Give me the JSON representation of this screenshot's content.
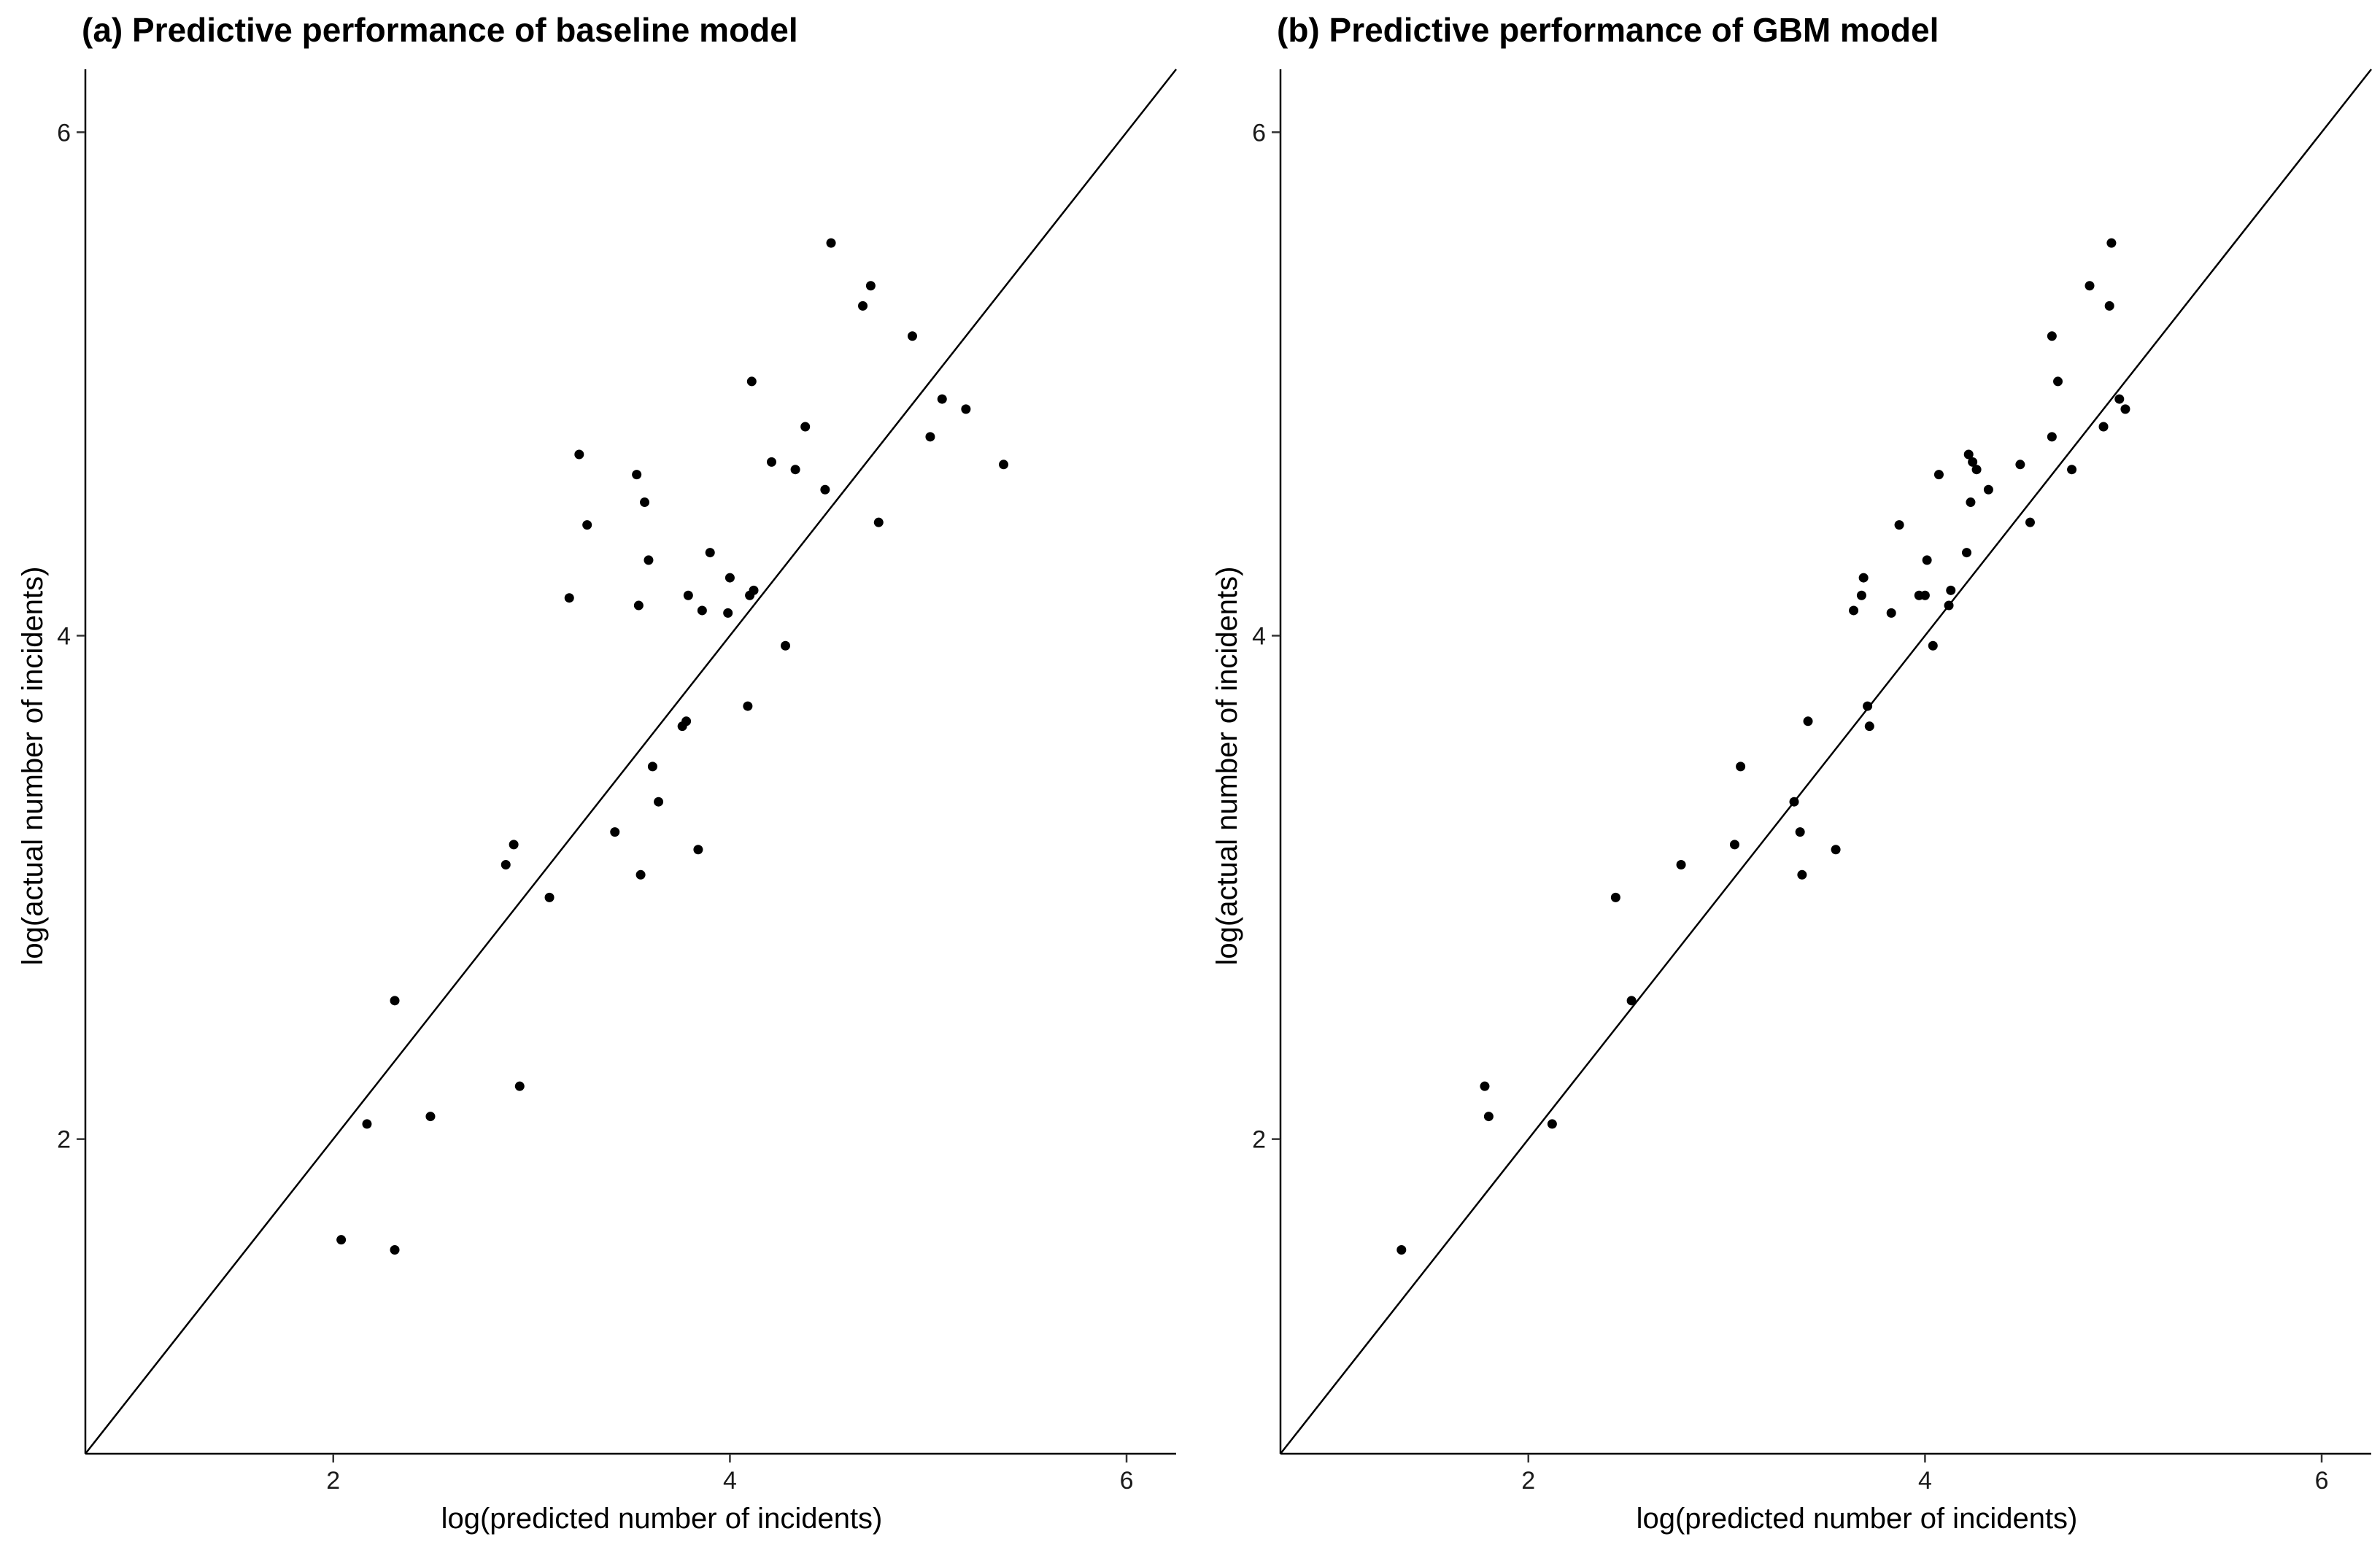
{
  "chart_data": [
    {
      "type": "scatter",
      "title": "(a) Predictive performance of baseline model",
      "xlabel": "log(predicted number of incidents)",
      "ylabel": "log(actual number of incidents)",
      "xlim": [
        0.75,
        6.25
      ],
      "ylim": [
        0.75,
        6.25
      ],
      "xticks": [
        2,
        4,
        6
      ],
      "yticks": [
        2,
        4,
        6
      ],
      "grid": false,
      "reference_line": "y = x",
      "x": [
        2.04,
        2.17,
        2.31,
        2.49,
        2.31,
        2.94,
        2.87,
        2.91,
        3.09,
        3.19,
        3.24,
        3.28,
        3.42,
        3.53,
        3.54,
        3.55,
        3.57,
        3.59,
        3.61,
        3.64,
        3.76,
        3.78,
        3.79,
        3.84,
        3.86,
        3.9,
        3.99,
        4.0,
        4.09,
        4.1,
        4.11,
        4.12,
        4.21,
        4.28,
        4.33,
        4.38,
        4.48,
        4.51,
        4.67,
        4.71,
        4.75,
        4.92,
        5.01,
        5.07,
        5.19,
        5.38
      ],
      "y": [
        1.6,
        2.06,
        2.55,
        2.09,
        1.56,
        2.21,
        3.09,
        3.17,
        2.96,
        4.15,
        4.72,
        4.44,
        3.22,
        4.64,
        4.12,
        3.05,
        4.53,
        4.3,
        3.48,
        3.34,
        3.64,
        3.66,
        4.16,
        3.15,
        4.1,
        4.33,
        4.09,
        4.23,
        3.72,
        4.16,
        5.01,
        4.18,
        4.69,
        3.96,
        4.66,
        4.83,
        4.58,
        5.56,
        5.31,
        5.39,
        4.45,
        5.19,
        4.79,
        4.94,
        4.9,
        4.68
      ]
    },
    {
      "type": "scatter",
      "title": "(b) Predictive performance of GBM model",
      "xlabel": "log(predicted number of incidents)",
      "ylabel": "log(actual number of incidents)",
      "xlim": [
        0.75,
        6.25
      ],
      "ylim": [
        0.75,
        6.25
      ],
      "xticks": [
        2,
        4,
        6
      ],
      "yticks": [
        2,
        4,
        6
      ],
      "grid": false,
      "reference_line": "y = x",
      "x": [
        1.36,
        1.78,
        1.8,
        2.12,
        2.44,
        2.52,
        2.77,
        3.04,
        3.07,
        3.34,
        3.37,
        3.38,
        3.41,
        3.55,
        3.64,
        3.68,
        3.69,
        3.71,
        3.72,
        3.83,
        3.87,
        3.97,
        4.0,
        4.01,
        4.04,
        4.07,
        4.12,
        4.13,
        4.21,
        4.22,
        4.23,
        4.24,
        4.26,
        4.32,
        4.48,
        4.53,
        4.64,
        4.64,
        4.67,
        4.74,
        4.83,
        4.9,
        4.93,
        4.94,
        4.98,
        5.01
      ],
      "y": [
        1.56,
        2.21,
        2.09,
        2.06,
        2.96,
        2.55,
        3.09,
        3.17,
        3.48,
        3.34,
        3.22,
        3.05,
        3.66,
        3.15,
        4.1,
        4.16,
        4.23,
        3.72,
        3.64,
        4.09,
        4.44,
        4.16,
        4.16,
        4.3,
        3.96,
        4.64,
        4.12,
        4.18,
        4.33,
        4.72,
        4.53,
        4.69,
        4.66,
        4.58,
        4.68,
        4.45,
        5.19,
        4.79,
        5.01,
        4.66,
        5.39,
        4.83,
        5.31,
        5.56,
        4.94,
        4.9
      ]
    }
  ]
}
